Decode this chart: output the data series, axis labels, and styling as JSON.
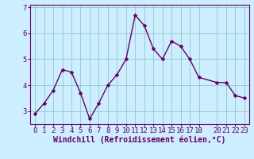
{
  "x": [
    0,
    1,
    2,
    3,
    4,
    5,
    6,
    7,
    8,
    9,
    10,
    11,
    12,
    13,
    14,
    15,
    16,
    17,
    18,
    20,
    21,
    22,
    23
  ],
  "y": [
    2.9,
    3.3,
    3.8,
    4.6,
    4.5,
    3.7,
    2.7,
    3.3,
    4.0,
    4.4,
    5.0,
    6.7,
    6.3,
    5.4,
    5.0,
    5.7,
    5.5,
    5.0,
    4.3,
    4.1,
    4.1,
    3.6,
    3.5
  ],
  "line_color": "#660066",
  "marker_color": "#660066",
  "bg_color": "#cceeff",
  "grid_color": "#99cccc",
  "xlabel": "Windchill (Refroidissement éolien,°C)",
  "xlim": [
    -0.5,
    23.5
  ],
  "ylim": [
    2.5,
    7.1
  ],
  "xticks": [
    0,
    1,
    2,
    3,
    4,
    5,
    6,
    7,
    8,
    9,
    10,
    11,
    12,
    13,
    14,
    15,
    16,
    17,
    18,
    20,
    21,
    22,
    23
  ],
  "yticks": [
    3,
    4,
    5,
    6,
    7
  ],
  "axis_color": "#660066",
  "tick_label_color": "#660066",
  "xlabel_color": "#660066",
  "xlabel_fontsize": 7,
  "tick_fontsize": 6.5,
  "linewidth": 1.0,
  "markersize": 2.5
}
